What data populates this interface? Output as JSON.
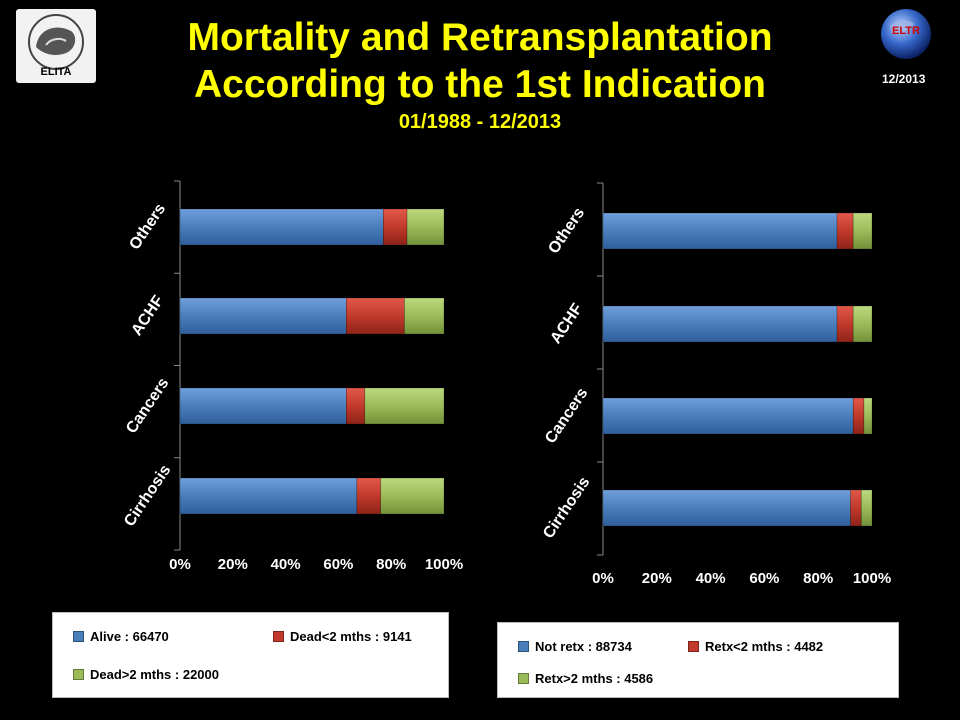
{
  "header": {
    "title_line1": "Mortality and Retransplantation",
    "title_line2": "According to the 1st Indication",
    "subtitle": "01/1988 - 12/2013",
    "date_label": "12/2013",
    "logo_left_text": "ELITA",
    "logo_right_text": "ELTR"
  },
  "colors": {
    "background": "#000000",
    "title": "#ffff00",
    "series_blue": "#4a7ebb",
    "series_red": "#c0392b",
    "series_green": "#9bbb59"
  },
  "chart_data": [
    {
      "type": "bar",
      "orientation": "horizontal",
      "stacked": true,
      "categories": [
        "Cirrhosis",
        "Cancers",
        "ACHF",
        "Others"
      ],
      "xlim": [
        0,
        100
      ],
      "xticks": [
        "0%",
        "20%",
        "40%",
        "60%",
        "80%",
        "100%"
      ],
      "series": [
        {
          "name": "Alive : 66470",
          "color": "#4a7ebb",
          "values": [
            67,
            63,
            63,
            77
          ]
        },
        {
          "name": "Dead<2 mths : 9141",
          "color": "#c0392b",
          "values": [
            9,
            7,
            22,
            9
          ]
        },
        {
          "name": "Dead>2 mths : 22000",
          "color": "#9bbb59",
          "values": [
            24,
            30,
            15,
            14
          ]
        }
      ],
      "legend_position": "bottom",
      "grid": false
    },
    {
      "type": "bar",
      "orientation": "horizontal",
      "stacked": true,
      "categories": [
        "Cirrhosis",
        "Cancers",
        "ACHF",
        "Others"
      ],
      "xlim": [
        0,
        100
      ],
      "xticks": [
        "0%",
        "20%",
        "40%",
        "60%",
        "80%",
        "100%"
      ],
      "series": [
        {
          "name": "Not retx : 88734",
          "color": "#4a7ebb",
          "values": [
            92,
            93,
            87,
            87
          ]
        },
        {
          "name": "Retx<2 mths : 4482",
          "color": "#c0392b",
          "values": [
            4,
            4,
            6,
            6
          ]
        },
        {
          "name": "Retx>2 mths : 4586",
          "color": "#9bbb59",
          "values": [
            4,
            3,
            7,
            7
          ]
        }
      ],
      "legend_position": "bottom",
      "grid": false
    }
  ]
}
